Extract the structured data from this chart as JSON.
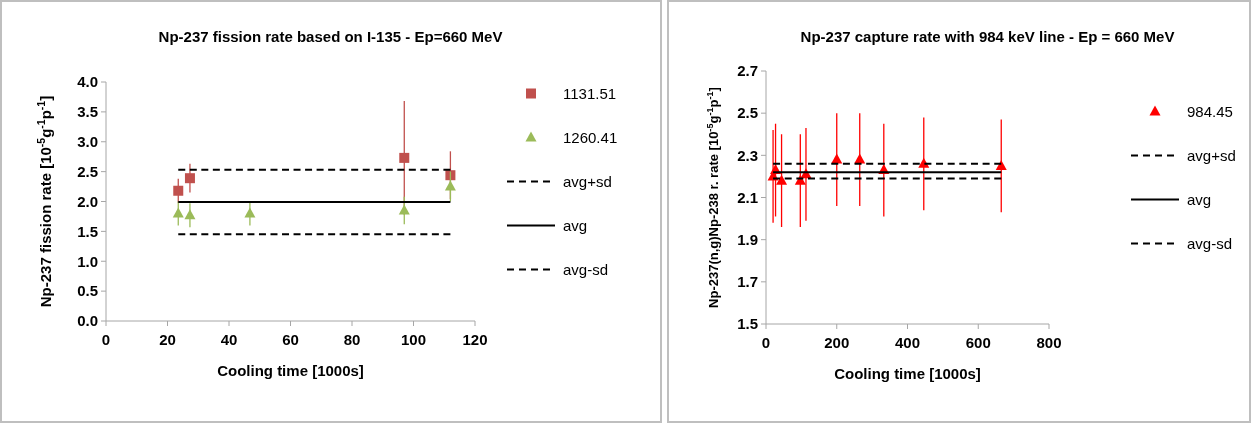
{
  "chart_data": [
    {
      "type": "scatter",
      "title": "Np-237 fission rate based on I-135 - Ep=660 MeV",
      "xlabel": "Cooling time [1000s]",
      "ylabel": "Np-237 fission rate [10$^{-5}$g$^{-1}$p$^{-1}$]",
      "xlim": [
        0,
        120
      ],
      "xticks": [
        0,
        20,
        40,
        60,
        80,
        100,
        120
      ],
      "ylim": [
        0,
        4
      ],
      "yticks": [
        {
          "value": 0,
          "label": "0.0"
        },
        0.5,
        {
          "value": 1,
          "label": "1.0"
        },
        1.5,
        {
          "value": 2,
          "label": "2.0"
        },
        2.5,
        {
          "value": 3,
          "label": "3.0"
        },
        3.5,
        {
          "value": 4,
          "label": "4.0"
        }
      ],
      "legend": "right",
      "grid": false,
      "series": [
        {
          "name": "1131.51",
          "marker": "square",
          "color": "#c0504d",
          "x": [
            23.5,
            27.3,
            97,
            112
          ],
          "values": [
            2.18,
            2.39,
            2.73,
            2.44
          ],
          "errors": [
            0.2,
            0.24,
            0.95,
            0.4
          ]
        },
        {
          "name": "1260.41",
          "marker": "triangle",
          "color": "#9bbb59",
          "x": [
            23.5,
            27.3,
            46.8,
            97,
            112
          ],
          "values": [
            1.8,
            1.77,
            1.8,
            1.85,
            2.25
          ],
          "errors": [
            0.2,
            0.2,
            0.2,
            0.23,
            0.25
          ]
        },
        {
          "name": "avg+sd",
          "type": "line",
          "marker": "none",
          "line_style": "dashed",
          "color": "#000000",
          "x": [
            23.5,
            112
          ],
          "values": [
            2.53,
            2.53
          ]
        },
        {
          "name": "avg",
          "type": "line",
          "marker": "none",
          "line_style": "solid",
          "color": "#000000",
          "x": [
            23.5,
            112
          ],
          "values": [
            1.99,
            1.99
          ]
        },
        {
          "name": "avg-sd",
          "type": "line",
          "marker": "none",
          "line_style": "dashed",
          "color": "#000000",
          "x": [
            23.5,
            112
          ],
          "values": [
            1.45,
            1.45
          ]
        }
      ]
    },
    {
      "type": "scatter",
      "title": "Np-237 capture rate  with 984 keV line - Ep = 660 MeV",
      "xlabel": "Cooling time [1000s]",
      "ylabel": "Np-237(n,g)Np-238 r. rate [10$^{-5}$g$^{-1}$p$^{-1}$]",
      "xlim": [
        0,
        800
      ],
      "xticks": [
        0,
        200,
        400,
        600,
        800
      ],
      "ylim": [
        1.5,
        2.7
      ],
      "yticks": [
        1.5,
        1.7,
        1.9,
        2.1,
        2.3,
        2.5,
        2.7
      ],
      "legend": "right",
      "grid": false,
      "series": [
        {
          "name": "984.45",
          "marker": "triangle",
          "color": "#ff0000",
          "x": [
            20,
            27,
            44,
            97,
            113,
            200,
            265,
            333,
            446,
            665
          ],
          "values": [
            2.2,
            2.23,
            2.18,
            2.18,
            2.21,
            2.28,
            2.28,
            2.23,
            2.26,
            2.25
          ],
          "errors": [
            0.22,
            0.22,
            0.22,
            0.22,
            0.22,
            0.22,
            0.22,
            0.22,
            0.22,
            0.22
          ]
        },
        {
          "name": "avg+sd",
          "type": "line",
          "marker": "none",
          "line_style": "dashed",
          "color": "#000000",
          "x": [
            20,
            665
          ],
          "values": [
            2.26,
            2.26
          ]
        },
        {
          "name": "avg",
          "type": "line",
          "marker": "none",
          "line_style": "solid",
          "color": "#000000",
          "x": [
            20,
            665
          ],
          "values": [
            2.22,
            2.22
          ]
        },
        {
          "name": "avg-sd",
          "type": "line",
          "marker": "none",
          "line_style": "dashed",
          "color": "#000000",
          "x": [
            20,
            665
          ],
          "values": [
            2.19,
            2.19
          ]
        }
      ]
    }
  ]
}
